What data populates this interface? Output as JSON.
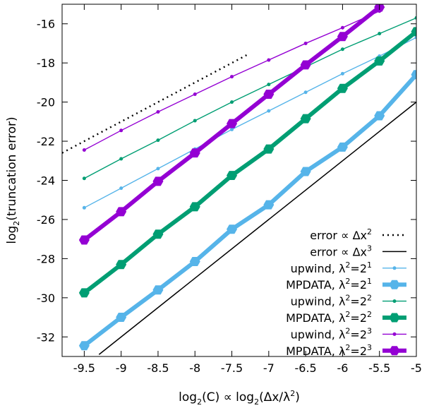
{
  "chart_data": {
    "type": "line",
    "xlabel": {
      "base": "log",
      "sub": "2",
      "rest": "(C) ∝ log",
      "sub2": "2",
      "tail": "(Δx/λ",
      "sup": "2",
      "end": ")"
    },
    "ylabel": {
      "base": "log",
      "sub": "2",
      "rest": "(truncation error)"
    },
    "xlim": [
      -9.8,
      -5.0
    ],
    "ylim": [
      -33.0,
      -15.0
    ],
    "x_ticks": [
      "-9.5",
      "-9",
      "-8.5",
      "-8",
      "-7.5",
      "-7",
      "-6.5",
      "-6",
      "-5.5",
      "-5"
    ],
    "y_ticks": [
      "-16",
      "-18",
      "-20",
      "-22",
      "-24",
      "-26",
      "-28",
      "-30",
      "-32"
    ],
    "x_tick_values": [
      -9.5,
      -9,
      -8.5,
      -8,
      -7.5,
      -7,
      -6.5,
      -6,
      -5.5,
      -5
    ],
    "y_tick_values": [
      -16,
      -18,
      -20,
      -22,
      -24,
      -26,
      -28,
      -30,
      -32
    ],
    "legend_position": "bottom-right",
    "reference_lines": [
      {
        "label_main": "error ∝ Δx",
        "label_sup": "2",
        "style": "dotted",
        "color": "#000000",
        "slope": 2,
        "x": [
          -9.8,
          -7.3
        ],
        "y": [
          -22.6,
          -17.6
        ]
      },
      {
        "label_main": "error ∝ Δx",
        "label_sup": "3",
        "style": "solid",
        "color": "#000000",
        "slope": 3,
        "x": [
          -9.3,
          -5.0
        ],
        "y": [
          -32.9,
          -20.0
        ]
      }
    ],
    "series": [
      {
        "label_main": "upwind, λ",
        "label_sup1": "2",
        "label_mid": "=2",
        "label_sup2": "1",
        "color": "#56b4e9",
        "kind": "upwind",
        "x": [
          -9.5,
          -9,
          -8.5,
          -8,
          -7.5,
          -7,
          -6.5,
          -6,
          -5.5,
          -5
        ],
        "y": [
          -25.4,
          -24.4,
          -23.4,
          -22.4,
          -21.4,
          -20.45,
          -19.5,
          -18.55,
          -17.65,
          -16.7
        ]
      },
      {
        "label_main": "MPDATA, λ",
        "label_sup1": "2",
        "label_mid": "=2",
        "label_sup2": "1",
        "color": "#56b4e9",
        "kind": "mpdata",
        "x": [
          -9.5,
          -9,
          -8.5,
          -8,
          -7.5,
          -7,
          -6.5,
          -6,
          -5.5,
          -5
        ],
        "y": [
          -32.45,
          -31.0,
          -29.6,
          -28.15,
          -26.5,
          -25.25,
          -23.55,
          -22.3,
          -20.7,
          -18.6
        ]
      },
      {
        "label_main": "upwind, λ",
        "label_sup1": "2",
        "label_mid": "=2",
        "label_sup2": "2",
        "color": "#009e73",
        "kind": "upwind",
        "x": [
          -9.5,
          -9,
          -8.5,
          -8,
          -7.5,
          -7,
          -6.5,
          -6,
          -5.5,
          -5
        ],
        "y": [
          -23.9,
          -22.9,
          -21.95,
          -20.95,
          -20.0,
          -19.1,
          -18.2,
          -17.3,
          -16.5,
          -15.7
        ]
      },
      {
        "label_main": "MPDATA, λ",
        "label_sup1": "2",
        "label_mid": "=2",
        "label_sup2": "2",
        "color": "#009e73",
        "kind": "mpdata",
        "x": [
          -9.5,
          -9,
          -8.5,
          -8,
          -7.5,
          -7,
          -6.5,
          -6,
          -5.5,
          -5
        ],
        "y": [
          -29.75,
          -28.3,
          -26.75,
          -25.35,
          -23.75,
          -22.4,
          -20.85,
          -19.3,
          -17.9,
          -16.4
        ]
      },
      {
        "label_main": "upwind, λ",
        "label_sup1": "2",
        "label_mid": "=2",
        "label_sup2": "3",
        "color": "#9400d3",
        "kind": "upwind",
        "x": [
          -9.5,
          -9,
          -8.5,
          -8,
          -7.5,
          -7,
          -6.5,
          -6,
          -5.5
        ],
        "y": [
          -22.45,
          -21.45,
          -20.5,
          -19.6,
          -18.7,
          -17.85,
          -17.0,
          -16.2,
          -15.35
        ]
      },
      {
        "label_main": "MPDATA, λ",
        "label_sup1": "2",
        "label_mid": "=2",
        "label_sup2": "3",
        "color": "#9400d3",
        "kind": "mpdata",
        "x": [
          -9.5,
          -9,
          -8.5,
          -8,
          -7.5,
          -7,
          -6.5,
          -6,
          -5.5
        ],
        "y": [
          -27.05,
          -25.6,
          -24.05,
          -22.6,
          -21.1,
          -19.6,
          -18.1,
          -16.65,
          -15.15
        ]
      }
    ]
  }
}
